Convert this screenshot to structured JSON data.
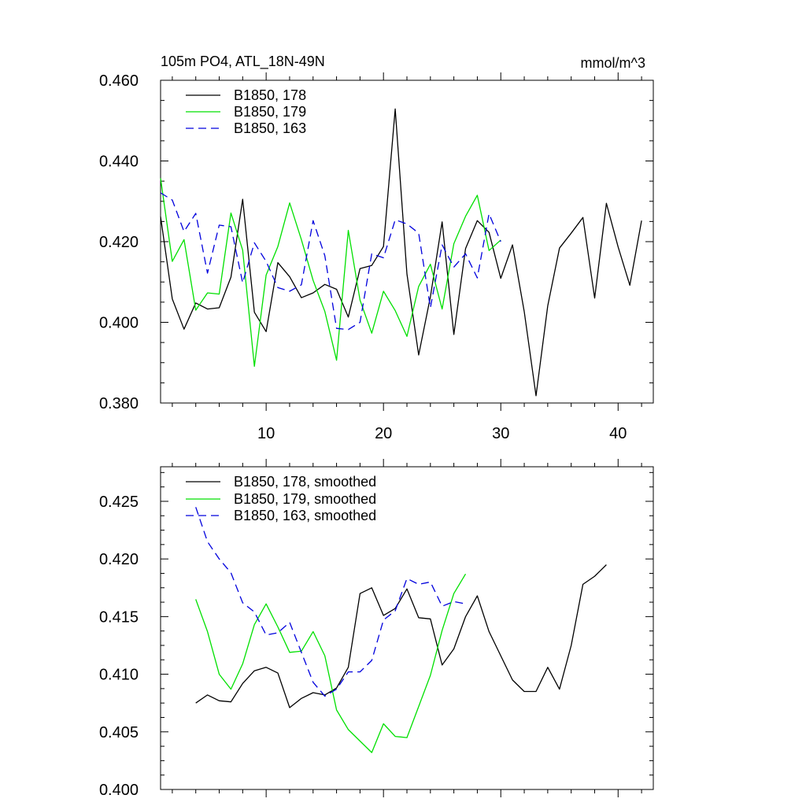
{
  "chart_data": [
    {
      "type": "line",
      "title_left": "105m PO4, ATL_18N-49N",
      "title_right": "mmol/m^3",
      "xlabel": "",
      "ylabel": "",
      "xlim": [
        1,
        43
      ],
      "ylim": [
        0.38,
        0.46
      ],
      "yticks": [
        0.38,
        0.4,
        0.42,
        0.44,
        0.46
      ],
      "ytick_labels": [
        "0.380",
        "0.400",
        "0.420",
        "0.440",
        "0.460"
      ],
      "xticks": [
        10,
        20,
        30,
        40
      ],
      "xtick_labels": [
        "10",
        "20",
        "30",
        "40"
      ],
      "legend_position": "top-left",
      "series": [
        {
          "name": "B1850, 178",
          "color": "#000000",
          "dash": "solid",
          "x": [
            1,
            2,
            3,
            4,
            5,
            6,
            7,
            8,
            9,
            10,
            11,
            12,
            13,
            14,
            15,
            16,
            17,
            18,
            19,
            20,
            21,
            22,
            23,
            24,
            25,
            26,
            27,
            28,
            29,
            30,
            31,
            32,
            33,
            34,
            35,
            36,
            37,
            38,
            39,
            40,
            41,
            42
          ],
          "values": [
            0.4262,
            0.4058,
            0.3983,
            0.4048,
            0.4033,
            0.4036,
            0.4112,
            0.4305,
            0.4025,
            0.3977,
            0.4148,
            0.4113,
            0.4061,
            0.4073,
            0.4094,
            0.4082,
            0.4013,
            0.4133,
            0.4141,
            0.4188,
            0.4529,
            0.412,
            0.3919,
            0.4063,
            0.4249,
            0.397,
            0.4183,
            0.4252,
            0.4223,
            0.4109,
            0.4192,
            0.4027,
            0.3818,
            0.4041,
            0.4184,
            0.4221,
            0.426,
            0.406,
            0.4295,
            0.4187,
            0.4092,
            0.4252
          ]
        },
        {
          "name": "B1850, 179",
          "color": "#00e000",
          "dash": "solid",
          "x": [
            1,
            2,
            3,
            4,
            5,
            6,
            7,
            8,
            9,
            10,
            11,
            12,
            13,
            14,
            15,
            16,
            17,
            18,
            19,
            20,
            21,
            22,
            23,
            24,
            25,
            26,
            27,
            28,
            29,
            30
          ],
          "values": [
            0.4357,
            0.4151,
            0.4205,
            0.403,
            0.4073,
            0.407,
            0.4271,
            0.4179,
            0.3891,
            0.4117,
            0.4188,
            0.4296,
            0.4205,
            0.4104,
            0.4027,
            0.3906,
            0.4228,
            0.4055,
            0.3973,
            0.4077,
            0.4029,
            0.3965,
            0.4089,
            0.4144,
            0.4033,
            0.4195,
            0.4263,
            0.4315,
            0.4178,
            0.4204
          ]
        },
        {
          "name": "B1850, 163",
          "color": "#0000dd",
          "dash": "dashed",
          "x": [
            1,
            2,
            3,
            4,
            5,
            6,
            7,
            8,
            9,
            10,
            11,
            12,
            13,
            14,
            15,
            16,
            17,
            18,
            19,
            20,
            21,
            22,
            23,
            24,
            25,
            26,
            27,
            28,
            29,
            30
          ],
          "values": [
            0.4321,
            0.4303,
            0.4225,
            0.427,
            0.4122,
            0.4241,
            0.4237,
            0.4098,
            0.4197,
            0.4151,
            0.4086,
            0.4077,
            0.4093,
            0.4252,
            0.4165,
            0.3985,
            0.3982,
            0.4,
            0.417,
            0.416,
            0.4254,
            0.4244,
            0.4221,
            0.4036,
            0.4192,
            0.4137,
            0.417,
            0.411,
            0.4269,
            0.42
          ]
        }
      ]
    },
    {
      "type": "line",
      "xlim": [
        1,
        43
      ],
      "ylim": [
        0.4,
        0.428
      ],
      "yticks": [
        0.4,
        0.405,
        0.41,
        0.415,
        0.42,
        0.425
      ],
      "ytick_labels": [
        "0.400",
        "0.405",
        "0.410",
        "0.415",
        "0.420",
        "0.425"
      ],
      "xticks": [
        10,
        20,
        30,
        40
      ],
      "legend_position": "top-left",
      "series": [
        {
          "name": "B1850, 178, smoothed",
          "color": "#000000",
          "dash": "solid",
          "x": [
            4,
            5,
            6,
            7,
            8,
            9,
            10,
            11,
            12,
            13,
            14,
            15,
            16,
            17,
            18,
            19,
            20,
            21,
            22,
            23,
            24,
            25,
            26,
            27,
            28,
            29,
            30,
            31,
            32,
            33,
            34,
            35,
            36,
            37,
            38,
            39
          ],
          "values": [
            0.4075,
            0.4082,
            0.4077,
            0.4076,
            0.4092,
            0.4103,
            0.4106,
            0.4101,
            0.4071,
            0.4079,
            0.4084,
            0.4082,
            0.4088,
            0.4106,
            0.417,
            0.4175,
            0.4151,
            0.4157,
            0.4174,
            0.4149,
            0.4148,
            0.4108,
            0.4122,
            0.415,
            0.4168,
            0.4137,
            0.4116,
            0.4095,
            0.4085,
            0.4085,
            0.4106,
            0.4087,
            0.4125,
            0.4178,
            0.4185,
            0.4195
          ]
        },
        {
          "name": "B1850, 179, smoothed",
          "color": "#00e000",
          "dash": "solid",
          "x": [
            4,
            5,
            6,
            7,
            8,
            9,
            10,
            11,
            12,
            13,
            14,
            15,
            16,
            17,
            18,
            19,
            20,
            21,
            22,
            23,
            24,
            25,
            26,
            27
          ],
          "values": [
            0.4165,
            0.4137,
            0.41,
            0.4087,
            0.4109,
            0.4143,
            0.4161,
            0.4141,
            0.4119,
            0.412,
            0.4137,
            0.4116,
            0.4069,
            0.4052,
            0.4042,
            0.4032,
            0.4057,
            0.4046,
            0.4045,
            0.4072,
            0.4099,
            0.4138,
            0.417,
            0.4187
          ]
        },
        {
          "name": "B1850, 163, smoothed",
          "color": "#0000dd",
          "dash": "dashed",
          "x": [
            4,
            5,
            6,
            7,
            8,
            9,
            10,
            11,
            12,
            13,
            14,
            15,
            16,
            17,
            18,
            19,
            20,
            21,
            22,
            23,
            24,
            25,
            26,
            27
          ],
          "values": [
            0.4245,
            0.4215,
            0.42,
            0.4188,
            0.4162,
            0.4154,
            0.4134,
            0.4136,
            0.4145,
            0.4119,
            0.4093,
            0.4081,
            0.4087,
            0.4102,
            0.4102,
            0.4112,
            0.4147,
            0.4155,
            0.4183,
            0.4178,
            0.418,
            0.4159,
            0.4163,
            0.4161
          ]
        }
      ]
    }
  ]
}
